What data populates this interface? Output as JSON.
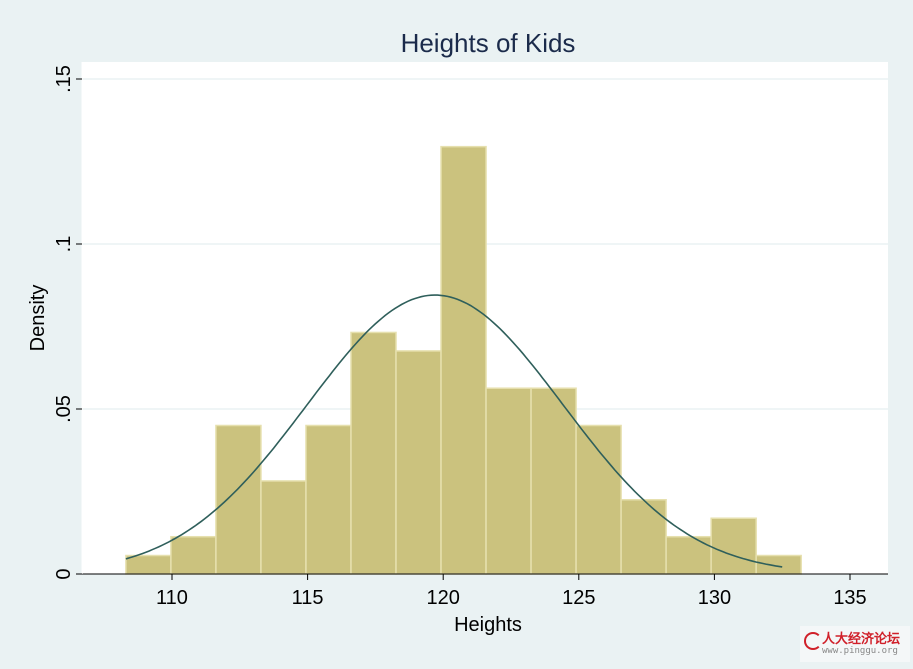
{
  "chart_data": {
    "type": "bar",
    "title": "Heights of Kids",
    "xlabel": "Heights",
    "ylabel": "Density",
    "xlim": [
      108,
      135
    ],
    "ylim": [
      0,
      0.15
    ],
    "xticks": [
      110,
      115,
      120,
      125,
      130,
      135
    ],
    "xtick_labels": [
      "110",
      "115",
      "120",
      "125",
      "130",
      "135"
    ],
    "yticks": [
      0,
      0.05,
      0.1,
      0.15
    ],
    "ytick_labels": [
      "0",
      ".05",
      ".1",
      ".15"
    ],
    "grid": true,
    "bin_start": 108.3,
    "bin_width": 1.66,
    "values": [
      0.0056,
      0.0113,
      0.045,
      0.0282,
      0.045,
      0.0732,
      0.0676,
      0.1295,
      0.0563,
      0.0563,
      0.045,
      0.0225,
      0.0113,
      0.0169,
      0.0056
    ],
    "normal_overlay": {
      "mean": 119.7,
      "sd": 4.72,
      "range": [
        108.3,
        132.5
      ]
    },
    "colors": {
      "bar": "#CBC27E",
      "bar_edge": "#E6E0AE",
      "curve": "#2F5F5B",
      "background": "#EAF2F3",
      "plot": "#FFFFFF",
      "title": "#1B2B4B"
    }
  },
  "watermark": {
    "name": "人大经济论坛",
    "url": "www.pinggu.org"
  }
}
